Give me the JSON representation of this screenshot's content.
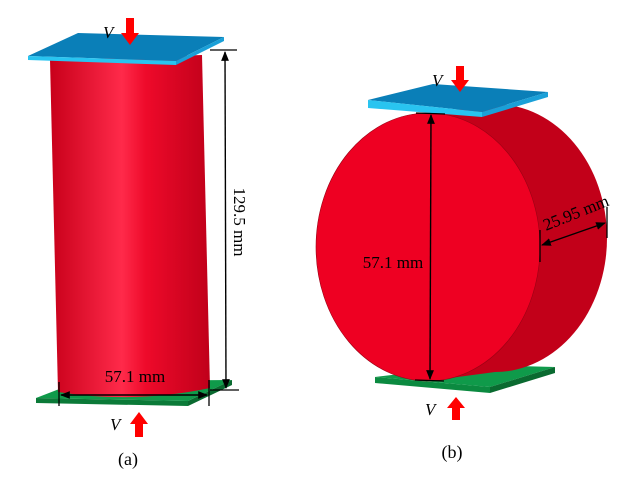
{
  "panels": [
    {
      "caption": "(a)",
      "height_label": "129.5 mm",
      "diameter_label": "57.1 mm",
      "load_top_label": "V",
      "load_bottom_label": "V"
    },
    {
      "caption": "(b)",
      "diameter_label": "57.1 mm",
      "thickness_label": "25.95 mm",
      "load_top_label": "V",
      "load_bottom_label": "V"
    }
  ],
  "colors": {
    "specimen": "#e8001f",
    "specimen_side": "#c20019",
    "top_platen": "#0a7fb8",
    "top_platen_edge": "#29c4f0",
    "bottom_platen": "#0f9a4a",
    "bottom_platen_edge": "#0b7a38",
    "load_arrow": "#ff0000"
  }
}
